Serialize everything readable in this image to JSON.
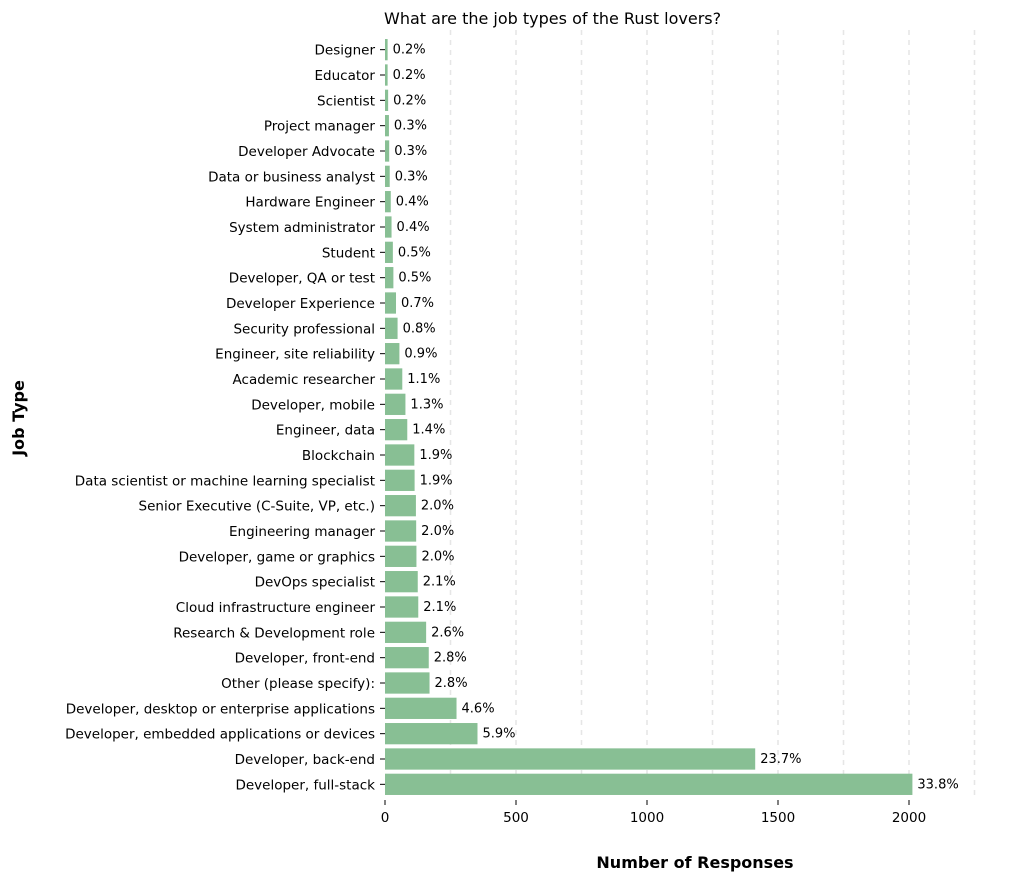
{
  "chart_data": {
    "type": "bar",
    "orientation": "horizontal",
    "title": "What are the job types of the Rust lovers?",
    "xlabel": "Number of Responses",
    "ylabel": "Job Type",
    "xlim": [
      0,
      2250
    ],
    "xticks": [
      0,
      500,
      1000,
      1500,
      2000
    ],
    "grid": "vertical dashed",
    "bar_color": "#88bf94",
    "categories": [
      "Designer",
      "Educator",
      "Scientist",
      "Project manager",
      "Developer Advocate",
      "Data or business analyst",
      "Hardware Engineer",
      "System administrator",
      "Student",
      "Developer, QA or test",
      "Developer Experience",
      "Security professional",
      "Engineer, site reliability",
      "Academic researcher",
      "Developer, mobile",
      "Engineer, data",
      "Blockchain",
      "Data scientist or machine learning specialist",
      "Senior Executive (C-Suite, VP, etc.)",
      "Engineering manager",
      "Developer, game or graphics",
      "DevOps specialist",
      "Cloud infrastructure engineer",
      "Research & Development role",
      "Developer, front-end",
      "Other (please specify):",
      "Developer, desktop or enterprise applications",
      "Developer, embedded applications or devices",
      "Developer, back-end",
      "Developer, full-stack"
    ],
    "values": [
      10,
      10,
      12,
      15,
      16,
      18,
      22,
      25,
      30,
      32,
      42,
      48,
      55,
      66,
      78,
      85,
      112,
      113,
      118,
      119,
      120,
      125,
      127,
      157,
      167,
      170,
      273,
      353,
      1413,
      2013
    ],
    "data_labels": [
      "0.2%",
      "0.2%",
      "0.2%",
      "0.3%",
      "0.3%",
      "0.3%",
      "0.4%",
      "0.4%",
      "0.5%",
      "0.5%",
      "0.7%",
      "0.8%",
      "0.9%",
      "1.1%",
      "1.3%",
      "1.4%",
      "1.9%",
      "1.9%",
      "2.0%",
      "2.0%",
      "2.0%",
      "2.1%",
      "2.1%",
      "2.6%",
      "2.8%",
      "2.8%",
      "4.6%",
      "5.9%",
      "23.7%",
      "33.8%"
    ]
  }
}
